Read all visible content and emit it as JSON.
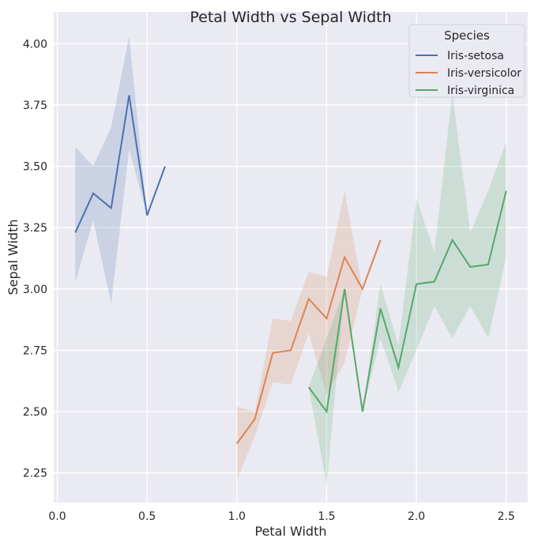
{
  "chart_data": {
    "type": "line",
    "title": "Petal Width vs Sepal Width",
    "xlabel": "Petal Width",
    "ylabel": "Sepal Width",
    "xlim": [
      -0.02,
      2.62
    ],
    "ylim": [
      2.13,
      4.13
    ],
    "xticks": [
      0.0,
      0.5,
      1.0,
      1.5,
      2.0,
      2.5
    ],
    "xtick_labels": [
      "0.0",
      "0.5",
      "1.0",
      "1.5",
      "2.0",
      "2.5"
    ],
    "yticks": [
      2.25,
      2.5,
      2.75,
      3.0,
      3.25,
      3.5,
      3.75,
      4.0
    ],
    "ytick_labels": [
      "2.25",
      "2.50",
      "2.75",
      "3.00",
      "3.25",
      "3.50",
      "3.75",
      "4.00"
    ],
    "grid": true,
    "legend": {
      "title": "Species",
      "position": "top-right"
    },
    "colors": {
      "background": "#eaeaf2",
      "grid": "#ffffff",
      "setosa": "#4c72b0",
      "versicolor": "#dd8452",
      "virginica": "#55a868"
    },
    "series": [
      {
        "name": "Iris-setosa",
        "color": "#4c72b0",
        "x": [
          0.1,
          0.2,
          0.3,
          0.4,
          0.5,
          0.6
        ],
        "y": [
          3.23,
          3.39,
          3.33,
          3.79,
          3.3,
          3.5
        ],
        "lower": [
          3.03,
          3.28,
          2.94,
          3.57,
          3.3,
          3.5
        ],
        "upper": [
          3.58,
          3.5,
          3.66,
          4.03,
          3.3,
          3.5
        ]
      },
      {
        "name": "Iris-versicolor",
        "color": "#dd8452",
        "x": [
          1.0,
          1.1,
          1.2,
          1.3,
          1.4,
          1.5,
          1.6,
          1.7,
          1.8
        ],
        "y": [
          2.37,
          2.47,
          2.74,
          2.75,
          2.96,
          2.88,
          3.13,
          3.0,
          3.2
        ],
        "lower": [
          2.22,
          2.4,
          2.62,
          2.61,
          2.82,
          2.57,
          2.7,
          3.0,
          3.2
        ],
        "upper": [
          2.52,
          2.5,
          2.88,
          2.87,
          3.07,
          3.05,
          3.4,
          3.0,
          3.2
        ]
      },
      {
        "name": "Iris-virginica",
        "color": "#55a868",
        "x": [
          1.4,
          1.5,
          1.6,
          1.7,
          1.8,
          1.9,
          2.0,
          2.1,
          2.2,
          2.3,
          2.4,
          2.5
        ],
        "y": [
          2.6,
          2.5,
          3.0,
          2.5,
          2.92,
          2.68,
          3.02,
          3.03,
          3.2,
          3.09,
          3.1,
          3.4
        ],
        "lower": [
          2.6,
          2.2,
          3.0,
          2.5,
          2.8,
          2.58,
          2.75,
          2.93,
          2.8,
          2.93,
          2.8,
          3.13
        ],
        "upper": [
          2.6,
          2.8,
          3.0,
          2.5,
          3.02,
          2.77,
          3.37,
          3.15,
          3.8,
          3.23,
          3.4,
          3.6
        ]
      }
    ]
  }
}
